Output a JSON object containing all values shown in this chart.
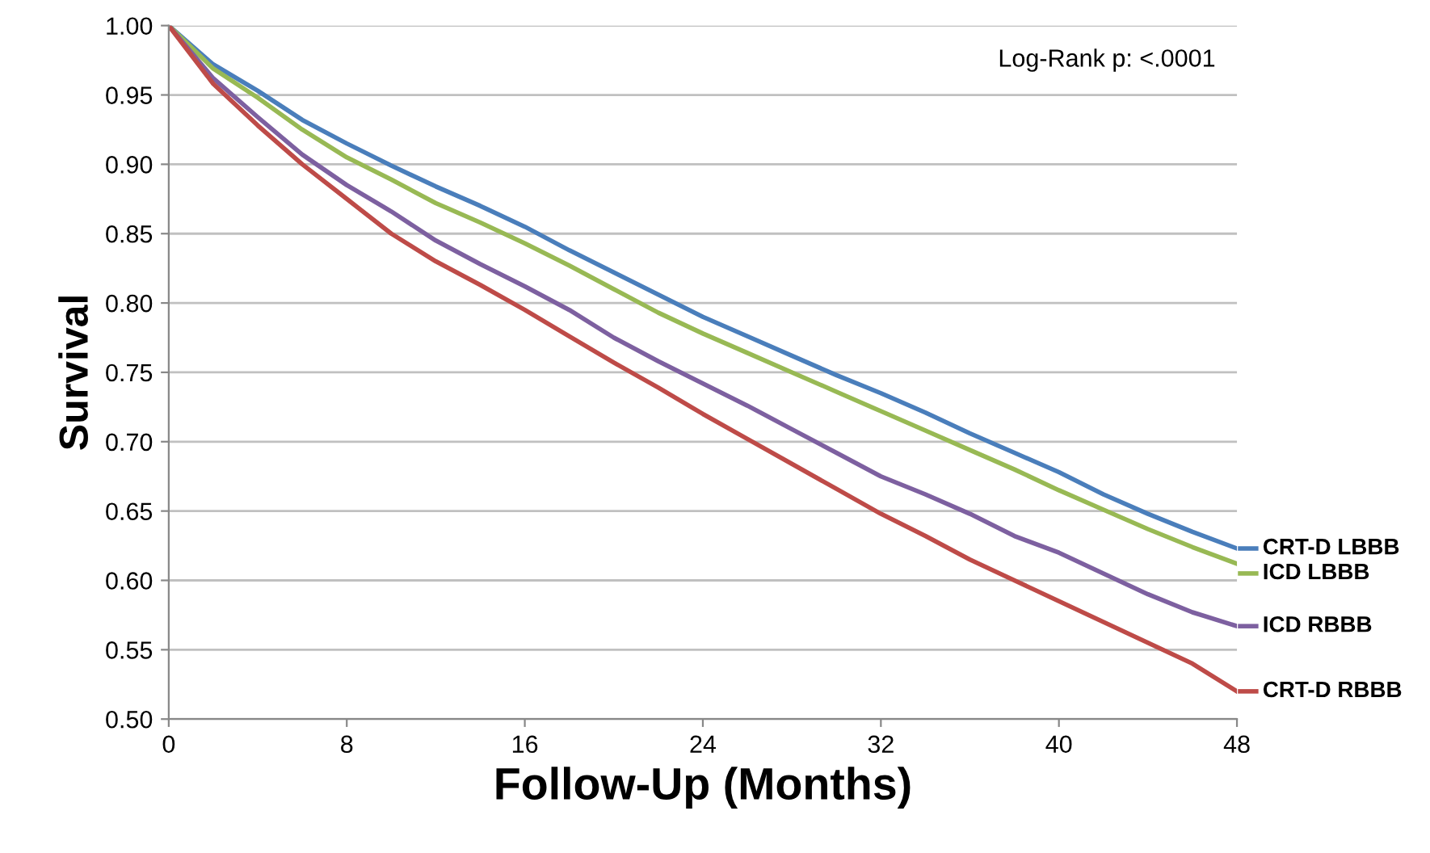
{
  "chart_data": {
    "type": "line",
    "xlabel": "Follow-Up (Months)",
    "ylabel": "Survival",
    "annotations": [
      "Log-Rank p: <.0001"
    ],
    "x": [
      0,
      2,
      4,
      6,
      8,
      10,
      12,
      14,
      16,
      18,
      20,
      22,
      24,
      26,
      28,
      30,
      32,
      34,
      36,
      38,
      40,
      42,
      44,
      46,
      48
    ],
    "series": [
      {
        "name": "CRT-D LBBB",
        "color": "#4a7ebb",
        "values": [
          1.0,
          0.972,
          0.953,
          0.932,
          0.915,
          0.899,
          0.884,
          0.87,
          0.855,
          0.838,
          0.822,
          0.806,
          0.79,
          0.776,
          0.762,
          0.748,
          0.735,
          0.721,
          0.706,
          0.692,
          0.678,
          0.662,
          0.648,
          0.635,
          0.623
        ]
      },
      {
        "name": "ICD LBBB",
        "color": "#98b954",
        "values": [
          1.0,
          0.969,
          0.948,
          0.925,
          0.905,
          0.889,
          0.872,
          0.858,
          0.843,
          0.827,
          0.81,
          0.793,
          0.778,
          0.764,
          0.75,
          0.736,
          0.722,
          0.708,
          0.694,
          0.68,
          0.665,
          0.651,
          0.637,
          0.624,
          0.612
        ]
      },
      {
        "name": "ICD RBBB",
        "color": "#7d60a0",
        "values": [
          1.0,
          0.962,
          0.934,
          0.907,
          0.885,
          0.866,
          0.845,
          0.828,
          0.812,
          0.795,
          0.775,
          0.758,
          0.742,
          0.726,
          0.709,
          0.692,
          0.675,
          0.662,
          0.648,
          0.632,
          0.62,
          0.605,
          0.59,
          0.577,
          0.567
        ]
      },
      {
        "name": "CRT-D RBBB",
        "color": "#be4b48",
        "values": [
          1.0,
          0.958,
          0.928,
          0.9,
          0.875,
          0.85,
          0.83,
          0.813,
          0.795,
          0.776,
          0.757,
          0.739,
          0.72,
          0.702,
          0.684,
          0.666,
          0.648,
          0.632,
          0.615,
          0.6,
          0.585,
          0.57,
          0.555,
          0.54,
          0.52
        ]
      }
    ],
    "xlim": [
      0,
      48
    ],
    "xticks": [
      0,
      8,
      16,
      24,
      32,
      40,
      48
    ],
    "ylim": [
      0.5,
      1.0
    ],
    "yticks": [
      {
        "value": 0.5,
        "label": "0.50"
      },
      {
        "value": 0.55,
        "label": "0.55"
      },
      {
        "value": 0.6,
        "label": "0.60"
      },
      {
        "value": 0.65,
        "label": "0.65"
      },
      {
        "value": 0.7,
        "label": "0.70"
      },
      {
        "value": 0.75,
        "label": "0.75"
      },
      {
        "value": 0.8,
        "label": "0.80"
      },
      {
        "value": 0.85,
        "label": "0.85"
      },
      {
        "value": 0.9,
        "label": "0.90"
      },
      {
        "value": 0.95,
        "label": "0.95"
      },
      {
        "value": 1.0,
        "label": "1.00"
      }
    ],
    "grid": "y",
    "legend": "right",
    "marker": "none",
    "line_style": "solid"
  }
}
